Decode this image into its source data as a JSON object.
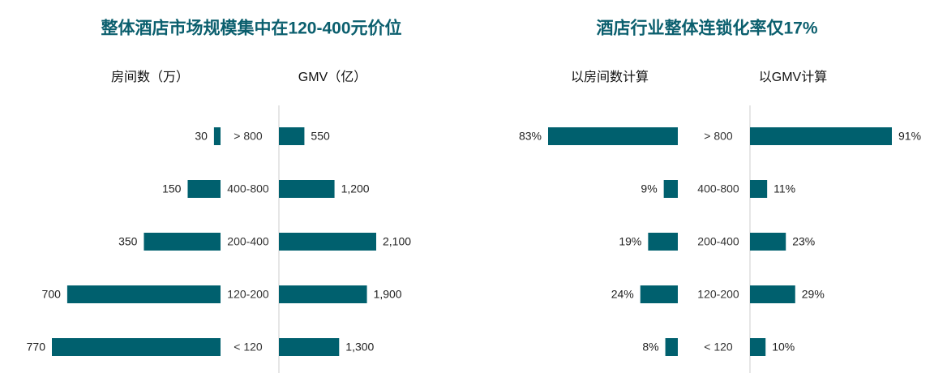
{
  "chart_data": [
    {
      "type": "butterfly",
      "title": "整体酒店市场规模集中在120-400元价位",
      "categories": [
        "> 800",
        "400-800",
        "200-400",
        "120-200",
        "< 120"
      ],
      "series": [
        {
          "name": "房间数（万）",
          "color": "#00606e",
          "values": [
            30,
            150,
            350,
            700,
            770
          ]
        },
        {
          "name": "GMV（亿）",
          "color": "#00606e",
          "values": [
            550,
            1200,
            2100,
            1900,
            1300
          ],
          "value_labels": [
            "550",
            "1,200",
            "2,100",
            "1,900",
            "1,300"
          ]
        }
      ]
    },
    {
      "type": "butterfly",
      "title": "酒店行业整体连锁化率仅17%",
      "categories": [
        "> 800",
        "400-800",
        "200-400",
        "120-200",
        "< 120"
      ],
      "series": [
        {
          "name": "以房间数计算",
          "color": "#00606e",
          "values": [
            83,
            9,
            19,
            24,
            8
          ],
          "value_labels": [
            "83%",
            "9%",
            "19%",
            "24%",
            "8%"
          ]
        },
        {
          "name": "以GMV计算",
          "color": "#00606e",
          "values": [
            91,
            11,
            23,
            29,
            10
          ],
          "value_labels": [
            "91%",
            "11%",
            "23%",
            "29%",
            "10%"
          ]
        }
      ]
    }
  ]
}
